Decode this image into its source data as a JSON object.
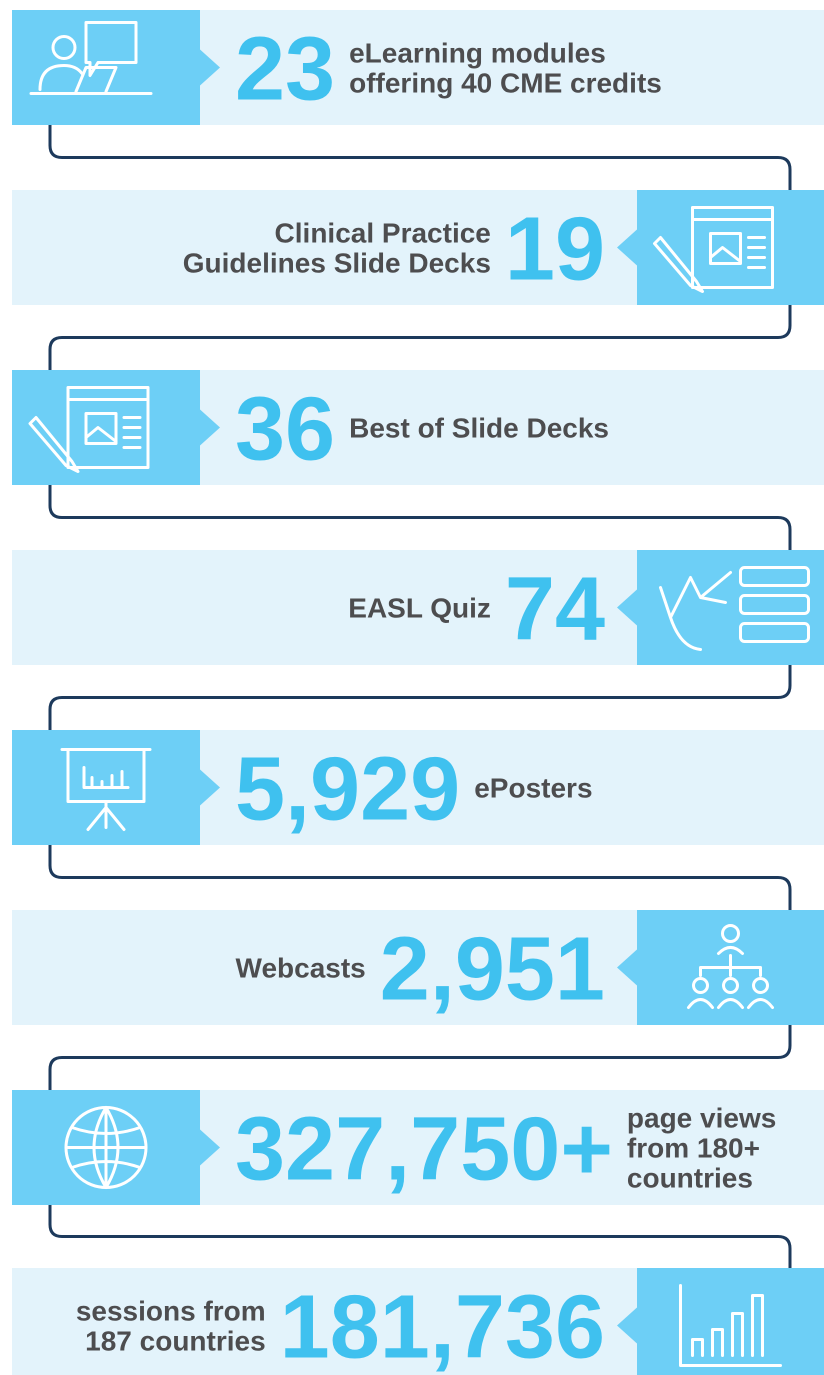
{
  "items": [
    {
      "number": "23",
      "label": [
        "eLearning modules",
        "offering 40 CME credits"
      ]
    },
    {
      "number": "19",
      "label": [
        "Clinical Practice",
        "Guidelines Slide Decks"
      ]
    },
    {
      "number": "36",
      "label": [
        "Best of Slide Decks"
      ]
    },
    {
      "number": "74",
      "label": [
        "EASL Quiz"
      ]
    },
    {
      "number": "5,929",
      "label": [
        "ePosters"
      ]
    },
    {
      "number": "2,951",
      "label": [
        "Webcasts"
      ]
    },
    {
      "number": "327,750+",
      "label": [
        "page views",
        "from 180+",
        "countries"
      ]
    },
    {
      "number": "181,736",
      "label": [
        "sessions from",
        "187 countries"
      ]
    }
  ]
}
